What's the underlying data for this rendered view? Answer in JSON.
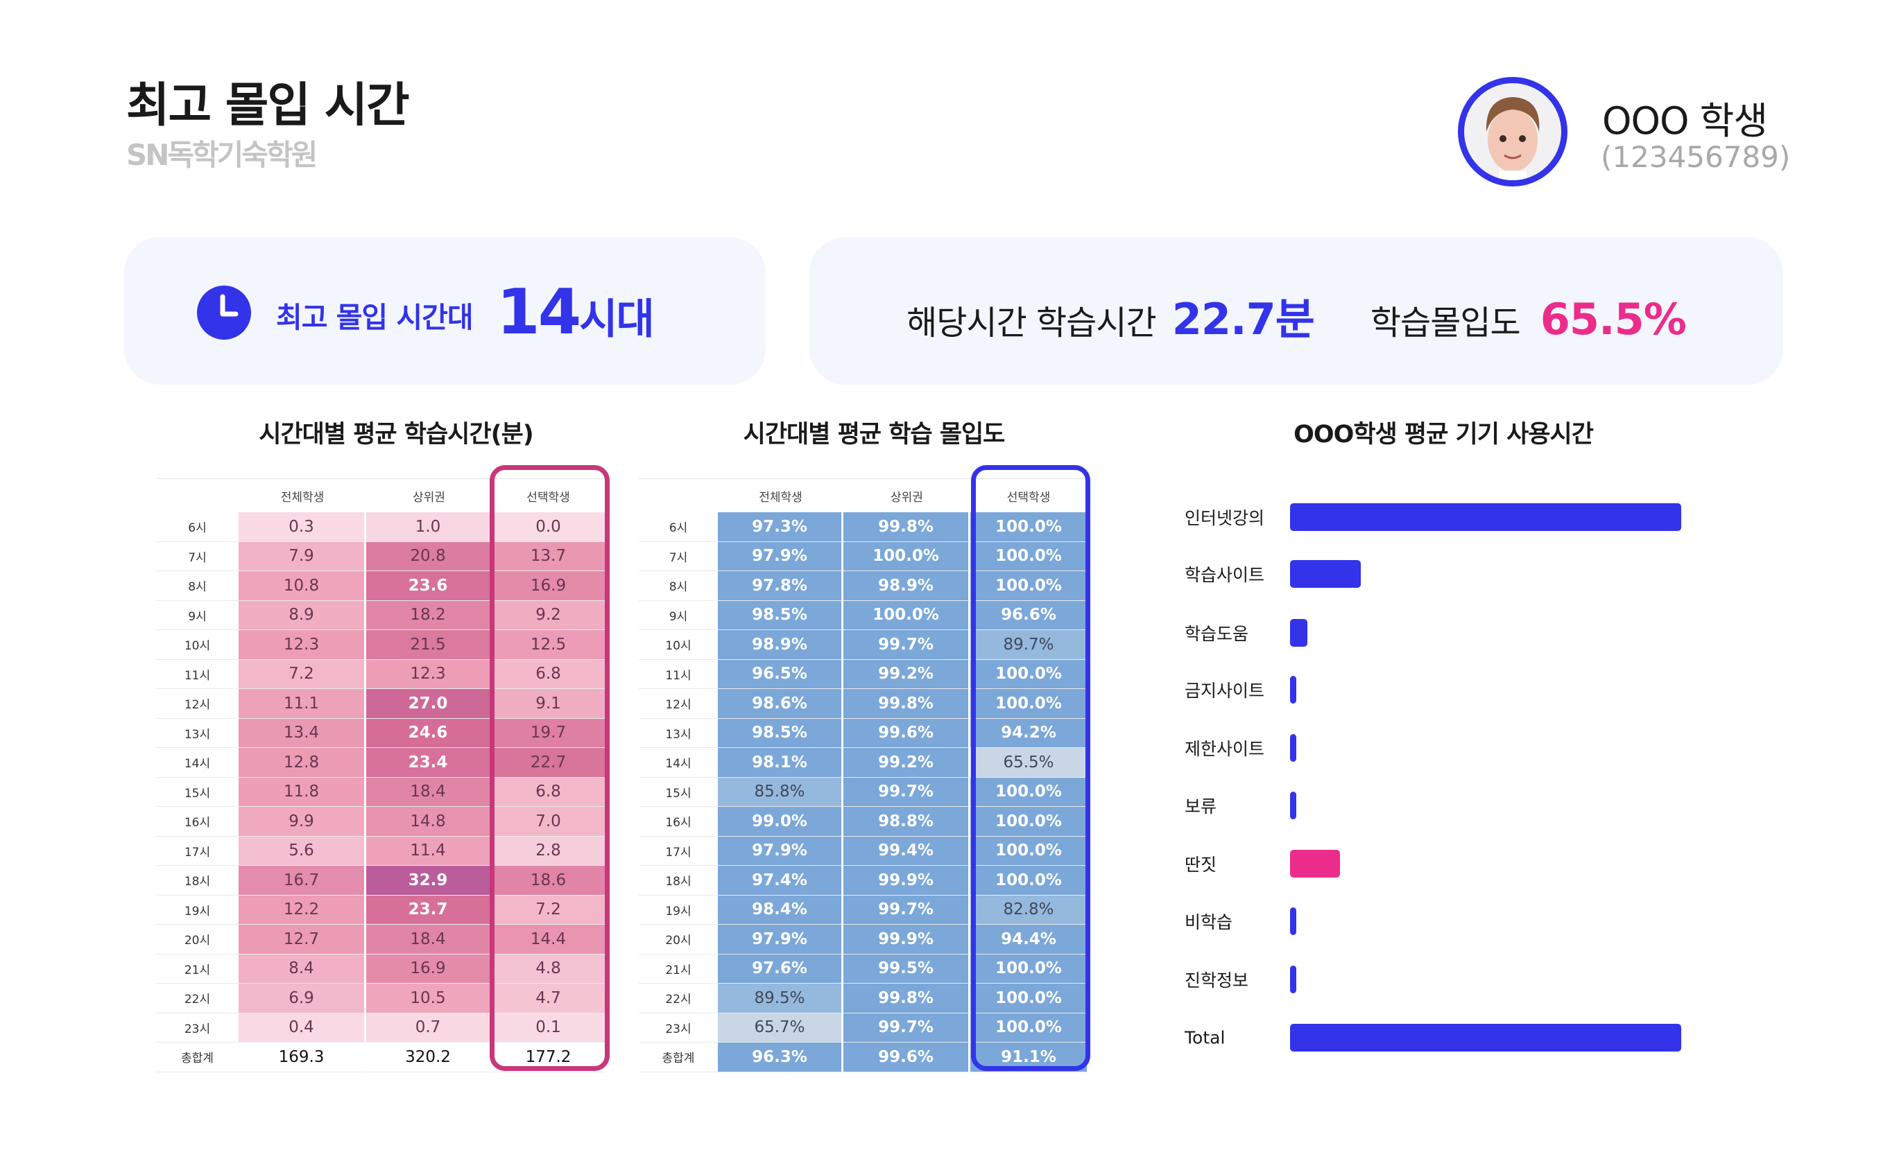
{
  "header": {
    "title": "최고 몰입 시간",
    "brand": "SN독학기숙학원",
    "student_name": "OOO 학생",
    "student_id": "(123456789)"
  },
  "summary": {
    "peak_label": "최고 몰입 시간대",
    "peak_value": "14",
    "peak_unit": "시대",
    "study_time_label": "해당시간 학습시간",
    "study_time_value": "22.7분",
    "immersion_label": "학습몰입도",
    "immersion_value": "65.5%"
  },
  "colors": {
    "accent_blue": "#3333ea",
    "accent_pink": "#ec2c8a",
    "highlight_pink": "#c8377a",
    "card_bg": "#f3f6fd"
  },
  "chart_data": [
    {
      "type": "heatmap",
      "title": "시간대별 평균 학습시간(분)",
      "columns": [
        "전체학생",
        "상위권",
        "선택학생"
      ],
      "highlight_column": "선택학생",
      "rows": [
        {
          "label": "6시",
          "values": [
            "0.3",
            "1.0",
            "0.0"
          ]
        },
        {
          "label": "7시",
          "values": [
            "7.9",
            "20.8",
            "13.7"
          ]
        },
        {
          "label": "8시",
          "values": [
            "10.8",
            "23.6",
            "16.9"
          ]
        },
        {
          "label": "9시",
          "values": [
            "8.9",
            "18.2",
            "9.2"
          ]
        },
        {
          "label": "10시",
          "values": [
            "12.3",
            "21.5",
            "12.5"
          ]
        },
        {
          "label": "11시",
          "values": [
            "7.2",
            "12.3",
            "6.8"
          ]
        },
        {
          "label": "12시",
          "values": [
            "11.1",
            "27.0",
            "9.1"
          ]
        },
        {
          "label": "13시",
          "values": [
            "13.4",
            "24.6",
            "19.7"
          ]
        },
        {
          "label": "14시",
          "values": [
            "12.8",
            "23.4",
            "22.7"
          ]
        },
        {
          "label": "15시",
          "values": [
            "11.8",
            "18.4",
            "6.8"
          ]
        },
        {
          "label": "16시",
          "values": [
            "9.9",
            "14.8",
            "7.0"
          ]
        },
        {
          "label": "17시",
          "values": [
            "5.6",
            "11.4",
            "2.8"
          ]
        },
        {
          "label": "18시",
          "values": [
            "16.7",
            "32.9",
            "18.6"
          ]
        },
        {
          "label": "19시",
          "values": [
            "12.2",
            "23.7",
            "7.2"
          ]
        },
        {
          "label": "20시",
          "values": [
            "12.7",
            "18.4",
            "14.4"
          ]
        },
        {
          "label": "21시",
          "values": [
            "8.4",
            "16.9",
            "4.8"
          ]
        },
        {
          "label": "22시",
          "values": [
            "6.9",
            "10.5",
            "4.7"
          ]
        },
        {
          "label": "23시",
          "values": [
            "0.4",
            "0.7",
            "0.1"
          ]
        }
      ],
      "total": {
        "label": "총합계",
        "values": [
          "169.3",
          "320.2",
          "177.2"
        ]
      }
    },
    {
      "type": "heatmap",
      "title": "시간대별 평균 학습 몰입도",
      "columns": [
        "전체학생",
        "상위권",
        "선택학생"
      ],
      "highlight_column": "선택학생",
      "rows": [
        {
          "label": "6시",
          "values": [
            "97.3%",
            "99.8%",
            "100.0%"
          ]
        },
        {
          "label": "7시",
          "values": [
            "97.9%",
            "100.0%",
            "100.0%"
          ]
        },
        {
          "label": "8시",
          "values": [
            "97.8%",
            "98.9%",
            "100.0%"
          ]
        },
        {
          "label": "9시",
          "values": [
            "98.5%",
            "100.0%",
            "96.6%"
          ]
        },
        {
          "label": "10시",
          "values": [
            "98.9%",
            "99.7%",
            "89.7%"
          ]
        },
        {
          "label": "11시",
          "values": [
            "96.5%",
            "99.2%",
            "100.0%"
          ]
        },
        {
          "label": "12시",
          "values": [
            "98.6%",
            "99.8%",
            "100.0%"
          ]
        },
        {
          "label": "13시",
          "values": [
            "98.5%",
            "99.6%",
            "94.2%"
          ]
        },
        {
          "label": "14시",
          "values": [
            "98.1%",
            "99.2%",
            "65.5%"
          ]
        },
        {
          "label": "15시",
          "values": [
            "85.8%",
            "99.7%",
            "100.0%"
          ]
        },
        {
          "label": "16시",
          "values": [
            "99.0%",
            "98.8%",
            "100.0%"
          ]
        },
        {
          "label": "17시",
          "values": [
            "97.9%",
            "99.4%",
            "100.0%"
          ]
        },
        {
          "label": "18시",
          "values": [
            "97.4%",
            "99.9%",
            "100.0%"
          ]
        },
        {
          "label": "19시",
          "values": [
            "98.4%",
            "99.7%",
            "82.8%"
          ]
        },
        {
          "label": "20시",
          "values": [
            "97.9%",
            "99.9%",
            "94.4%"
          ]
        },
        {
          "label": "21시",
          "values": [
            "97.6%",
            "99.5%",
            "100.0%"
          ]
        },
        {
          "label": "22시",
          "values": [
            "89.5%",
            "99.8%",
            "100.0%"
          ]
        },
        {
          "label": "23시",
          "values": [
            "65.7%",
            "99.7%",
            "100.0%"
          ]
        }
      ],
      "total": {
        "label": "총합계",
        "values": [
          "96.3%",
          "99.6%",
          "91.1%"
        ]
      }
    },
    {
      "type": "bar",
      "orientation": "horizontal",
      "title": "OOO학생 평균 기기 사용시간",
      "categories": [
        "인터넷강의",
        "학습사이트",
        "학습도움",
        "금지사이트",
        "제한사이트",
        "보류",
        "딴짓",
        "비학습",
        "진학정보",
        "Total"
      ],
      "values_relative": [
        1.0,
        0.18,
        0.045,
        0.015,
        0.015,
        0.015,
        0.128,
        0.015,
        0.015,
        1.0
      ],
      "bar_colors": [
        "#3333ea",
        "#3333ea",
        "#3333ea",
        "#3333ea",
        "#3333ea",
        "#3333ea",
        "#ec2c8a",
        "#3333ea",
        "#3333ea",
        "#3333ea"
      ],
      "xlim": [
        0,
        1
      ]
    }
  ]
}
